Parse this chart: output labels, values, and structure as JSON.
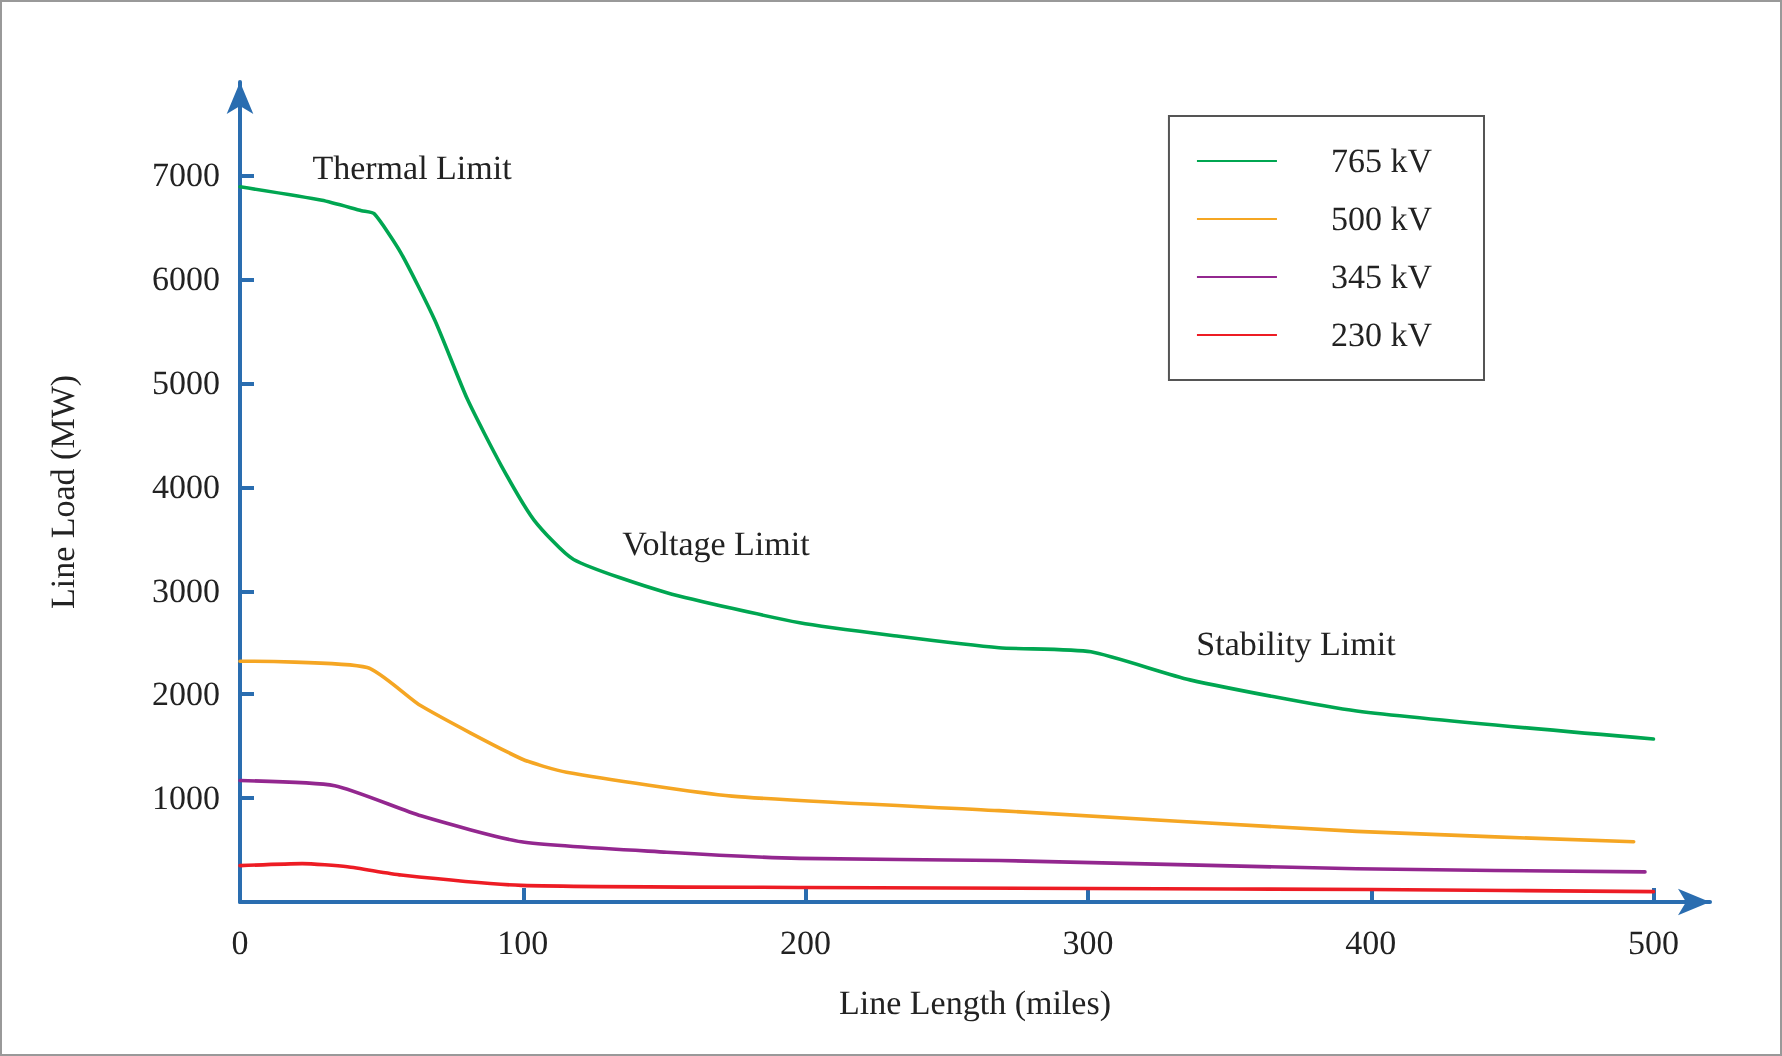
{
  "chart_data": {
    "type": "line",
    "xlabel": "Line Length (miles)",
    "ylabel": "Line Load (MW)",
    "xlim": [
      0,
      520
    ],
    "xticks": [
      0,
      100,
      200,
      300,
      400,
      500
    ],
    "ylim": [
      0,
      7900
    ],
    "yticks": [
      1000,
      2000,
      3000,
      4000,
      5000,
      6000,
      7000
    ],
    "grid": false,
    "legend": "top right",
    "marker": "none",
    "line_style": "solid",
    "annotations": [
      "Thermal Limit",
      "Voltage Limit",
      "Stability Limit"
    ],
    "series": [
      {
        "name": "765 kV",
        "color": "#00a651",
        "x": [
          0,
          29,
          43,
          47.5,
          57,
          69,
          80.5,
          92.5,
          104,
          118,
          151,
          198,
          233,
          268.5,
          301,
          336,
          395,
          500
        ],
        "values": [
          6890,
          6760,
          6660,
          6630,
          6250,
          5600,
          4840,
          4200,
          3680,
          3300,
          2980,
          2690,
          2560,
          2450,
          2410,
          2140,
          1840,
          1570
        ]
      },
      {
        "name": "500 kV",
        "color": "#f5a623",
        "x": [
          0,
          45,
          64,
          99.5,
          115.5,
          174,
          268.5,
          395,
          493
        ],
        "values": [
          2320,
          2260,
          1890,
          1380,
          1250,
          1020,
          880,
          680,
          580
        ]
      },
      {
        "name": "345 kV",
        "color": "#93278f",
        "x": [
          0,
          33.5,
          64,
          99.5,
          151,
          198,
          268.5,
          395,
          497
        ],
        "values": [
          1170,
          1120,
          830,
          580,
          480,
          420,
          400,
          320,
          290
        ]
      },
      {
        "name": "230 kV",
        "color": "#ed1c24",
        "x": [
          0,
          22,
          38,
          57,
          99.5,
          200,
          300,
          400,
          500
        ],
        "values": [
          350,
          370,
          340,
          260,
          160,
          140,
          130,
          120,
          100
        ]
      }
    ]
  }
}
